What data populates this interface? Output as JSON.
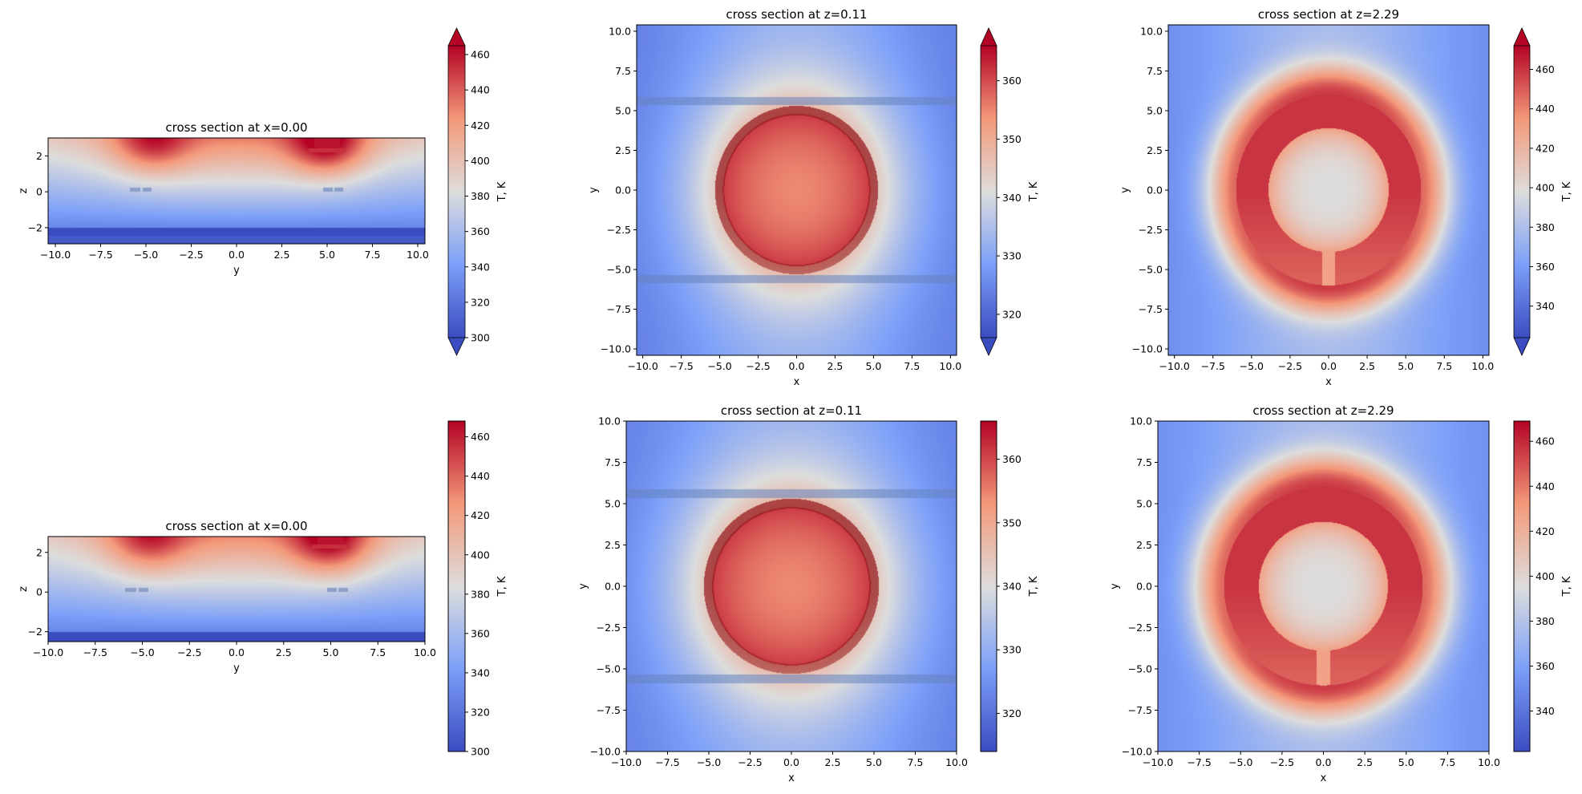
{
  "colormap": "coolwarm",
  "colors": {
    "cold": "#3b4cc0",
    "mid": "#dddddd",
    "hot": "#b40426"
  },
  "chart_data": [
    {
      "type": "heatmap",
      "title": "cross section at x=0.00",
      "xlabel": "y",
      "ylabel": "z",
      "xlim": [
        -10.4,
        10.4
      ],
      "ylim": [
        -2.9,
        3.0
      ],
      "xticks": [
        -10,
        -7.5,
        -5,
        -2.5,
        0,
        2.5,
        5,
        7.5,
        10
      ],
      "xtick_labels": [
        "−10.0",
        "−7.5",
        "−5.0",
        "−2.5",
        "0.0",
        "2.5",
        "5.0",
        "7.5",
        "10.0"
      ],
      "yticks": [
        -2,
        0,
        2
      ],
      "ytick_labels": [
        "−2",
        "0",
        "2"
      ],
      "colorbar": {
        "label": "T, K",
        "clim": [
          300,
          465
        ],
        "extend": "both",
        "ticks": [
          300,
          320,
          340,
          360,
          380,
          400,
          420,
          440,
          460
        ],
        "tick_labels": [
          "300",
          "320",
          "340",
          "360",
          "380",
          "400",
          "420",
          "440",
          "460"
        ]
      }
    },
    {
      "type": "heatmap",
      "title": "cross section at z=0.11",
      "xlabel": "x",
      "ylabel": "y",
      "xlim": [
        -10.4,
        10.4
      ],
      "ylim": [
        -10.4,
        10.4
      ],
      "xticks": [
        -10,
        -7.5,
        -5,
        -2.5,
        0,
        2.5,
        5,
        7.5,
        10
      ],
      "xtick_labels": [
        "−10.0",
        "−7.5",
        "−5.0",
        "−2.5",
        "0.0",
        "2.5",
        "5.0",
        "7.5",
        "10.0"
      ],
      "yticks": [
        -10,
        -7.5,
        -5,
        -2.5,
        0,
        2.5,
        5,
        7.5,
        10
      ],
      "ytick_labels": [
        "−10.0",
        "−7.5",
        "−5.0",
        "−2.5",
        "0.0",
        "2.5",
        "5.0",
        "7.5",
        "10.0"
      ],
      "colorbar": {
        "label": "T, K",
        "clim": [
          316,
          366
        ],
        "extend": "both",
        "ticks": [
          320,
          330,
          340,
          350,
          360
        ],
        "tick_labels": [
          "320",
          "330",
          "340",
          "350",
          "360"
        ]
      }
    },
    {
      "type": "heatmap",
      "title": "cross section at z=2.29",
      "xlabel": "x",
      "ylabel": "y",
      "xlim": [
        -10.4,
        10.4
      ],
      "ylim": [
        -10.4,
        10.4
      ],
      "xticks": [
        -10,
        -7.5,
        -5,
        -2.5,
        0,
        2.5,
        5,
        7.5,
        10
      ],
      "xtick_labels": [
        "−10.0",
        "−7.5",
        "−5.0",
        "−2.5",
        "0.0",
        "2.5",
        "5.0",
        "7.5",
        "10.0"
      ],
      "yticks": [
        -10,
        -7.5,
        -5,
        -2.5,
        0,
        2.5,
        5,
        7.5,
        10
      ],
      "ytick_labels": [
        "−10.0",
        "−7.5",
        "−5.0",
        "−2.5",
        "0.0",
        "2.5",
        "5.0",
        "7.5",
        "10.0"
      ],
      "colorbar": {
        "label": "T, K",
        "clim": [
          324,
          472
        ],
        "extend": "both",
        "ticks": [
          340,
          360,
          380,
          400,
          420,
          440,
          460
        ],
        "tick_labels": [
          "340",
          "360",
          "380",
          "400",
          "420",
          "440",
          "460"
        ]
      }
    },
    {
      "type": "heatmap",
      "title": "cross section at x=0.00",
      "xlabel": "y",
      "ylabel": "z",
      "xlim": [
        -10,
        10
      ],
      "ylim": [
        -2.5,
        2.8
      ],
      "xticks": [
        -10,
        -7.5,
        -5,
        -2.5,
        0,
        2.5,
        5,
        7.5,
        10
      ],
      "xtick_labels": [
        "−10.0",
        "−7.5",
        "−5.0",
        "−2.5",
        "0.0",
        "2.5",
        "5.0",
        "7.5",
        "10.0"
      ],
      "yticks": [
        -2,
        0,
        2
      ],
      "ytick_labels": [
        "−2",
        "0",
        "2"
      ],
      "colorbar": {
        "label": "T, K",
        "clim": [
          300,
          468
        ],
        "extend": "neither",
        "ticks": [
          300,
          320,
          340,
          360,
          380,
          400,
          420,
          440,
          460
        ],
        "tick_labels": [
          "300",
          "320",
          "340",
          "360",
          "380",
          "400",
          "420",
          "440",
          "460"
        ]
      }
    },
    {
      "type": "heatmap",
      "title": "cross section at z=0.11",
      "xlabel": "x",
      "ylabel": "y",
      "xlim": [
        -10,
        10
      ],
      "ylim": [
        -10,
        10
      ],
      "xticks": [
        -10,
        -7.5,
        -5,
        -2.5,
        0,
        2.5,
        5,
        7.5,
        10
      ],
      "xtick_labels": [
        "−10.0",
        "−7.5",
        "−5.0",
        "−2.5",
        "0.0",
        "2.5",
        "5.0",
        "7.5",
        "10.0"
      ],
      "yticks": [
        -10,
        -7.5,
        -5,
        -2.5,
        0,
        2.5,
        5,
        7.5,
        10
      ],
      "ytick_labels": [
        "−10.0",
        "−7.5",
        "−5.0",
        "−2.5",
        "0.0",
        "2.5",
        "5.0",
        "7.5",
        "10.0"
      ],
      "colorbar": {
        "label": "T, K",
        "clim": [
          314,
          366
        ],
        "extend": "neither",
        "ticks": [
          320,
          330,
          340,
          350,
          360
        ],
        "tick_labels": [
          "320",
          "330",
          "340",
          "350",
          "360"
        ]
      }
    },
    {
      "type": "heatmap",
      "title": "cross section at z=2.29",
      "xlabel": "x",
      "ylabel": "y",
      "xlim": [
        -10,
        10
      ],
      "ylim": [
        -10,
        10
      ],
      "xticks": [
        -10,
        -7.5,
        -5,
        -2.5,
        0,
        2.5,
        5,
        7.5,
        10
      ],
      "xtick_labels": [
        "−10.0",
        "−7.5",
        "−5.0",
        "−2.5",
        "0.0",
        "2.5",
        "5.0",
        "7.5",
        "10.0"
      ],
      "yticks": [
        -10,
        -7.5,
        -5,
        -2.5,
        0,
        2.5,
        5,
        7.5,
        10
      ],
      "ytick_labels": [
        "−10.0",
        "−7.5",
        "−5.0",
        "−2.5",
        "0.0",
        "2.5",
        "5.0",
        "7.5",
        "10.0"
      ],
      "colorbar": {
        "label": "T, K",
        "clim": [
          322,
          469
        ],
        "extend": "neither",
        "ticks": [
          340,
          360,
          380,
          400,
          420,
          440,
          460
        ],
        "tick_labels": [
          "340",
          "360",
          "380",
          "400",
          "420",
          "440",
          "460"
        ]
      }
    }
  ]
}
